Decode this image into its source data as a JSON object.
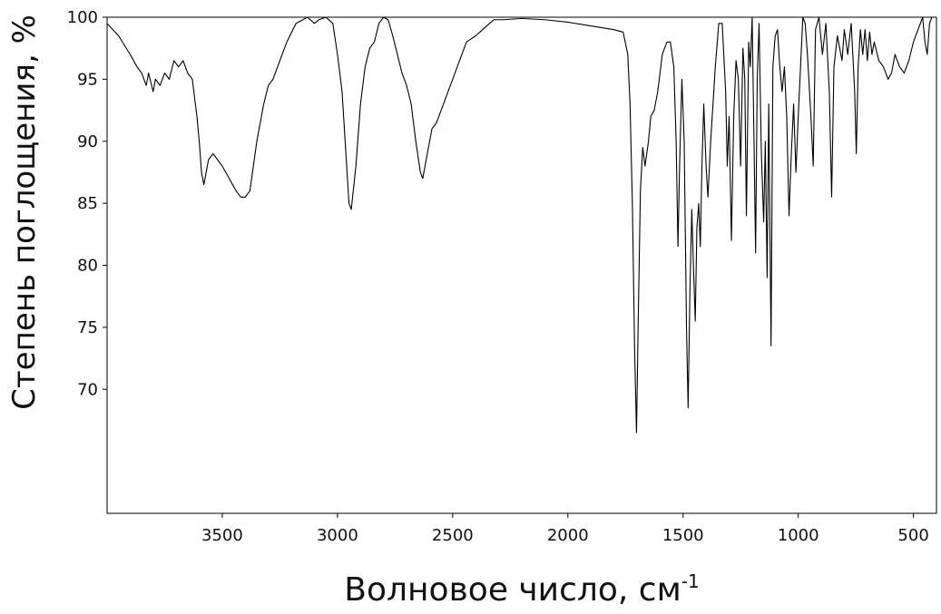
{
  "chart_data": {
    "type": "line",
    "ylabel": "Степень поглощения, %",
    "xlabel": "Волновое число, см",
    "xlabel_sup": "-1",
    "color": "#000000",
    "xlim": [
      4000,
      400
    ],
    "ylim": [
      60,
      100
    ],
    "xticks": [
      3500,
      3000,
      2500,
      2000,
      1500,
      1000,
      500
    ],
    "yticks": [
      100,
      95,
      90,
      85,
      80,
      75,
      70
    ],
    "x": [
      4000,
      3950,
      3900,
      3870,
      3850,
      3830,
      3820,
      3800,
      3790,
      3770,
      3750,
      3730,
      3710,
      3690,
      3670,
      3650,
      3630,
      3610,
      3600,
      3590,
      3580,
      3560,
      3540,
      3520,
      3500,
      3470,
      3440,
      3420,
      3400,
      3380,
      3350,
      3320,
      3300,
      3280,
      3250,
      3220,
      3180,
      3130,
      3100,
      3080,
      3050,
      3020,
      3000,
      2980,
      2960,
      2950,
      2940,
      2920,
      2900,
      2880,
      2860,
      2840,
      2820,
      2800,
      2780,
      2760,
      2740,
      2720,
      2700,
      2680,
      2660,
      2640,
      2630,
      2610,
      2590,
      2570,
      2550,
      2530,
      2500,
      2470,
      2440,
      2400,
      2370,
      2340,
      2320,
      2280,
      2200,
      2100,
      2000,
      1900,
      1800,
      1760,
      1740,
      1730,
      1720,
      1710,
      1702,
      1695,
      1685,
      1675,
      1665,
      1650,
      1640,
      1625,
      1610,
      1590,
      1570,
      1555,
      1540,
      1530,
      1522,
      1515,
      1505,
      1495,
      1485,
      1478,
      1470,
      1462,
      1455,
      1447,
      1440,
      1432,
      1425,
      1418,
      1410,
      1400,
      1392,
      1380,
      1360,
      1345,
      1330,
      1315,
      1308,
      1300,
      1290,
      1280,
      1270,
      1260,
      1250,
      1240,
      1232,
      1225,
      1215,
      1208,
      1200,
      1192,
      1185,
      1178,
      1170,
      1160,
      1150,
      1143,
      1135,
      1128,
      1118,
      1110,
      1100,
      1090,
      1080,
      1070,
      1060,
      1050,
      1040,
      1030,
      1020,
      1010,
      1000,
      990,
      980,
      970,
      960,
      945,
      935,
      925,
      910,
      895,
      880,
      865,
      855,
      845,
      830,
      810,
      800,
      785,
      770,
      755,
      748,
      740,
      730,
      720,
      710,
      700,
      690,
      680,
      670,
      650,
      630,
      610,
      595,
      580,
      560,
      540,
      520,
      500,
      480,
      460,
      450,
      440,
      430,
      420,
      400
    ],
    "values": [
      99.5,
      98.5,
      97,
      96,
      95.5,
      94.5,
      95.5,
      94,
      95,
      94.5,
      95.5,
      95,
      96.5,
      96,
      96.5,
      95.5,
      95,
      92,
      90,
      87.5,
      86.5,
      88.5,
      89,
      88.5,
      88,
      87,
      86,
      85.5,
      85.5,
      86,
      90,
      93,
      94.5,
      95,
      96.5,
      98,
      99.5,
      100,
      99.5,
      99.8,
      100,
      99.5,
      97,
      94,
      88,
      85,
      84.5,
      88,
      93,
      96,
      97.5,
      98,
      99.5,
      100,
      99.8,
      98.5,
      97,
      95.5,
      94.5,
      93,
      90,
      87.5,
      87,
      89,
      91,
      91.5,
      92.5,
      93.5,
      95,
      96.5,
      98,
      98.5,
      99,
      99.5,
      99.8,
      99.8,
      99.9,
      99.8,
      99.6,
      99.3,
      99,
      98.8,
      97,
      93,
      85,
      73,
      66.5,
      75,
      86,
      89.5,
      88,
      90,
      92,
      92.5,
      94,
      97,
      98,
      98,
      96,
      90,
      81.5,
      88,
      95,
      90,
      75,
      68.5,
      78,
      84.5,
      80,
      75.5,
      83,
      85,
      81.5,
      88,
      93,
      88,
      85.5,
      90,
      96,
      99.5,
      99.5,
      94,
      88,
      92,
      82,
      92,
      96.5,
      95,
      88,
      97.5,
      95,
      84,
      98,
      96,
      100,
      90,
      81,
      95,
      99.5,
      89,
      83.5,
      90,
      79,
      93,
      73.5,
      96,
      98.5,
      99,
      96,
      94,
      96,
      92,
      84,
      89,
      93,
      87.5,
      92,
      96,
      100,
      99.5,
      97,
      92,
      88,
      99,
      100,
      97,
      99.5,
      94,
      85.5,
      96,
      98.5,
      96.5,
      99,
      97,
      99.5,
      94,
      89,
      96,
      99,
      97,
      99,
      96.5,
      98.8,
      97,
      98,
      96.5,
      96,
      95,
      95.5,
      97,
      96,
      95.5,
      96.5,
      98,
      99,
      100,
      98,
      97,
      99.5,
      100,
      100
    ]
  }
}
